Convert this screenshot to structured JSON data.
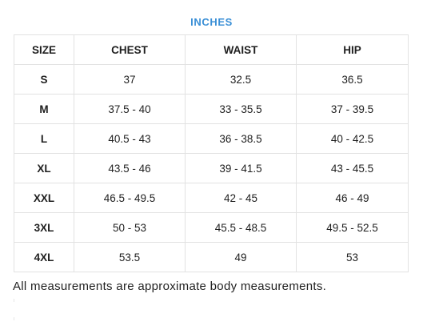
{
  "units_label": "INCHES",
  "table": {
    "headers": [
      "SIZE",
      "CHEST",
      "WAIST",
      "HIP"
    ],
    "rows": [
      [
        "S",
        "37",
        "32.5",
        "36.5"
      ],
      [
        "M",
        "37.5 - 40",
        "33 - 35.5",
        "37 - 39.5"
      ],
      [
        "L",
        "40.5 - 43",
        "36 - 38.5",
        "40 - 42.5"
      ],
      [
        "XL",
        "43.5 - 46",
        "39 - 41.5",
        "43 - 45.5"
      ],
      [
        "XXL",
        "46.5 - 49.5",
        "42 - 45",
        "46 - 49"
      ],
      [
        "3XL",
        "50 - 53",
        "45.5 - 48.5",
        "49.5 - 52.5"
      ],
      [
        "4XL",
        "53.5",
        "49",
        "53"
      ]
    ]
  },
  "note": "All measurements are approximate body measurements."
}
